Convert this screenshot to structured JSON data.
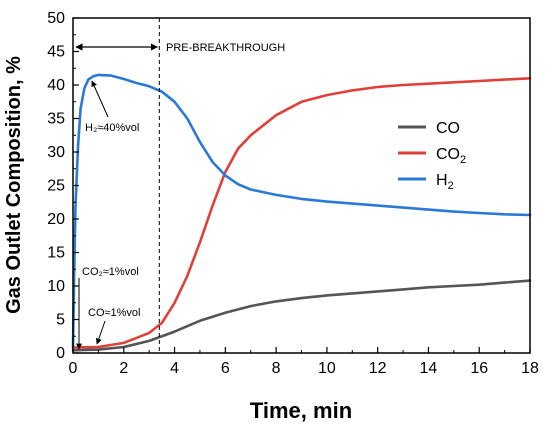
{
  "chart_data": {
    "type": "line",
    "xlabel": "Time, min",
    "ylabel": "Gas Outlet Composition, %",
    "xlim": [
      0,
      18
    ],
    "ylim": [
      0,
      50
    ],
    "x_ticks": [
      "0",
      "2",
      "4",
      "6",
      "8",
      "10",
      "12",
      "14",
      "16",
      "18"
    ],
    "y_ticks": [
      "0",
      "5",
      "10",
      "15",
      "20",
      "25",
      "30",
      "35",
      "40",
      "45",
      "50"
    ],
    "legend_position": "right-center",
    "series": [
      {
        "name": "CO",
        "sub": "",
        "color": "#555555",
        "points": [
          [
            0,
            0.4
          ],
          [
            1,
            0.5
          ],
          [
            2,
            0.9
          ],
          [
            3,
            1.8
          ],
          [
            4,
            3.2
          ],
          [
            5,
            4.8
          ],
          [
            6,
            6.0
          ],
          [
            7,
            7.0
          ],
          [
            8,
            7.7
          ],
          [
            9,
            8.2
          ],
          [
            10,
            8.6
          ],
          [
            11,
            8.9
          ],
          [
            12,
            9.2
          ],
          [
            13,
            9.5
          ],
          [
            14,
            9.8
          ],
          [
            15,
            10.0
          ],
          [
            16,
            10.2
          ],
          [
            17,
            10.5
          ],
          [
            18,
            10.8
          ]
        ]
      },
      {
        "name": "CO",
        "sub": "2",
        "color": "#e0403a",
        "points": [
          [
            0,
            0.8
          ],
          [
            1,
            0.9
          ],
          [
            2,
            1.5
          ],
          [
            3,
            3.0
          ],
          [
            3.5,
            4.5
          ],
          [
            4,
            7.5
          ],
          [
            4.5,
            11.5
          ],
          [
            5,
            16.5
          ],
          [
            5.5,
            22.0
          ],
          [
            6,
            27.0
          ],
          [
            6.5,
            30.5
          ],
          [
            7,
            32.5
          ],
          [
            8,
            35.5
          ],
          [
            9,
            37.5
          ],
          [
            10,
            38.5
          ],
          [
            11,
            39.2
          ],
          [
            12,
            39.7
          ],
          [
            13,
            40.0
          ],
          [
            14,
            40.2
          ],
          [
            15,
            40.4
          ],
          [
            16,
            40.6
          ],
          [
            17,
            40.8
          ],
          [
            18,
            41.0
          ]
        ]
      },
      {
        "name": "H",
        "sub": "2",
        "color": "#2a7ad5",
        "points": [
          [
            0,
            1.0
          ],
          [
            0.05,
            13.0
          ],
          [
            0.1,
            22.0
          ],
          [
            0.2,
            31.0
          ],
          [
            0.3,
            36.5
          ],
          [
            0.45,
            39.5
          ],
          [
            0.6,
            40.8
          ],
          [
            0.8,
            41.3
          ],
          [
            1.0,
            41.5
          ],
          [
            1.5,
            41.4
          ],
          [
            2.0,
            40.9
          ],
          [
            2.5,
            40.3
          ],
          [
            3.0,
            39.8
          ],
          [
            3.5,
            39.0
          ],
          [
            4.0,
            37.5
          ],
          [
            4.5,
            35.0
          ],
          [
            5.0,
            31.5
          ],
          [
            5.5,
            28.5
          ],
          [
            6.0,
            26.5
          ],
          [
            6.5,
            25.2
          ],
          [
            7.0,
            24.4
          ],
          [
            8.0,
            23.6
          ],
          [
            9.0,
            23.0
          ],
          [
            10.0,
            22.6
          ],
          [
            11.0,
            22.3
          ],
          [
            12.0,
            22.0
          ],
          [
            13.0,
            21.7
          ],
          [
            14.0,
            21.4
          ],
          [
            15.0,
            21.1
          ],
          [
            16.0,
            20.9
          ],
          [
            17.0,
            20.7
          ],
          [
            18.0,
            20.6
          ]
        ]
      }
    ],
    "breakthrough_line_x": 3.4,
    "annotations": {
      "pre_breakthrough": "PRE-BREAKTHROUGH",
      "h2_label": "H₂≈40%vol",
      "co2_label": "CO₂≈1%vol",
      "co_label": "CO≈1%vol"
    }
  }
}
